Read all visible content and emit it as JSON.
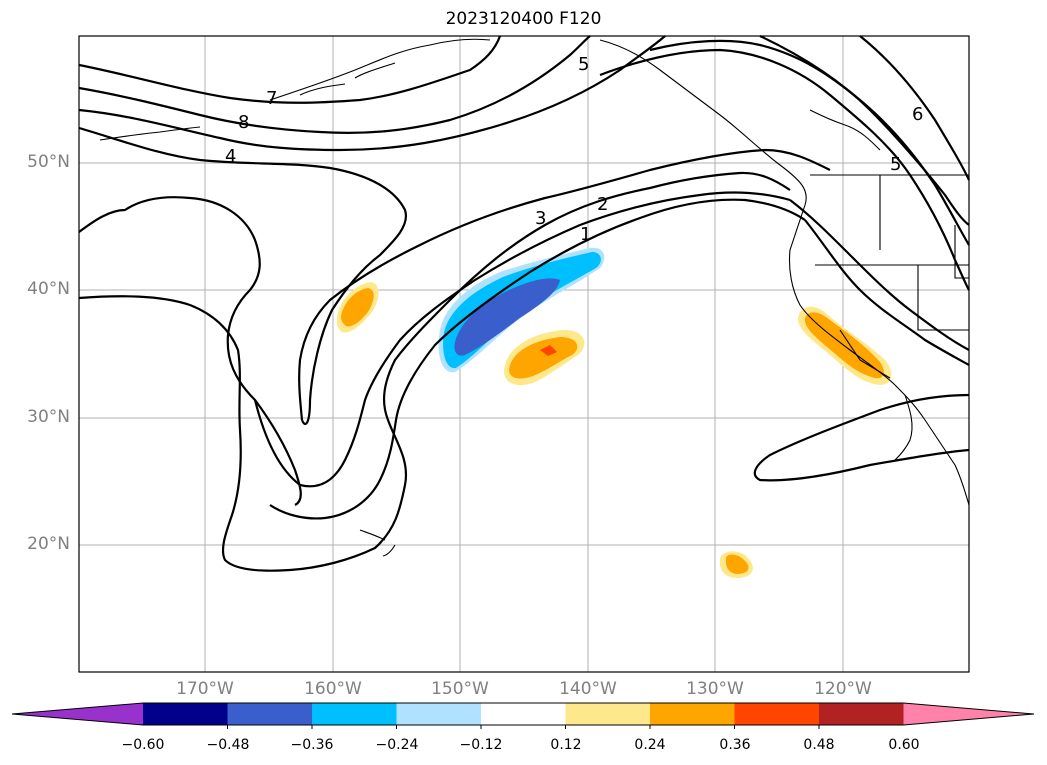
{
  "title": "2023120400 F120",
  "map": {
    "lat_labels": [
      "50°N",
      "40°N",
      "30°N",
      "20°N"
    ],
    "lon_labels": [
      "170°W",
      "160°W",
      "150°W",
      "140°W",
      "130°W",
      "120°W"
    ],
    "gridlines": true,
    "contour_labels": [
      "7",
      "8",
      "4",
      "5",
      "3",
      "2",
      "1",
      "5",
      "6"
    ]
  },
  "colorbar": {
    "ticks": [
      "−0.60",
      "−0.48",
      "−0.36",
      "−0.24",
      "−0.12",
      "0.12",
      "0.24",
      "0.36",
      "0.48",
      "0.60"
    ],
    "colors": [
      "#9932cc",
      "#00008b",
      "#3a5fcd",
      "#00bfff",
      "#b0e2ff",
      "#ffffff",
      "#ffe88c",
      "#ffa500",
      "#ff4500",
      "#b22222",
      "#ff82ab"
    ],
    "extend": "both"
  }
}
